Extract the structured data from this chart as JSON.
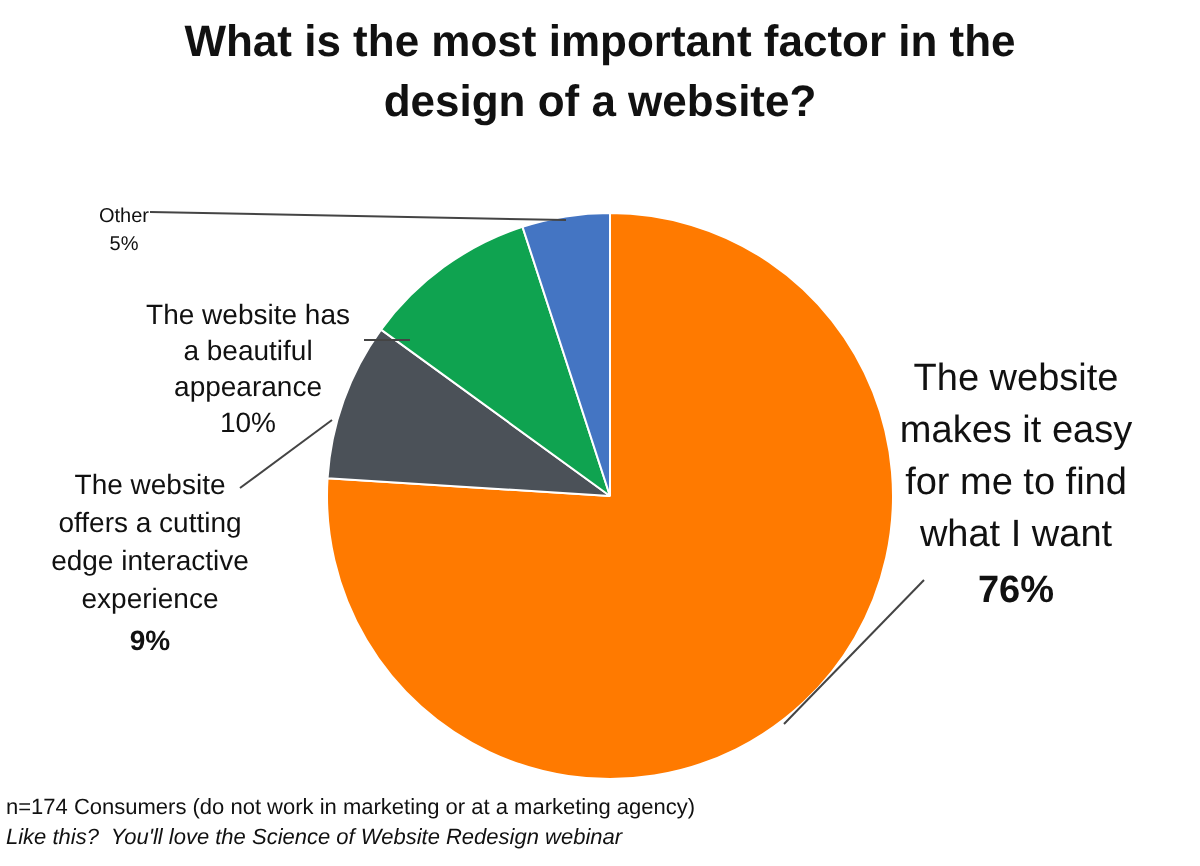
{
  "chart_data": {
    "type": "pie",
    "title": "What is the most important factor in the design of a website?",
    "categories": [
      "The website makes it easy for me to find what I want",
      "The website offers a cutting edge interactive experience",
      "The website has a beautiful appearance",
      "Other"
    ],
    "values": [
      76,
      9,
      10,
      5
    ],
    "colors": [
      "#ff7a00",
      "#4b5158",
      "#0fa350",
      "#4475c3"
    ],
    "value_labels": [
      "76%",
      "9%",
      "10%",
      "5%"
    ],
    "legend": false,
    "annotations": [
      "n=174 Consumers (do not work in marketing or at a marketing agency)",
      "Like this?  You'll love the Science of Website Redesign webinar"
    ]
  }
}
